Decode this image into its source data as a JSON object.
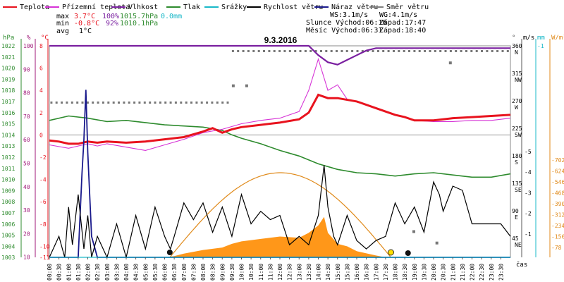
{
  "chart_data": {
    "type": "line",
    "title": "9.3.2016",
    "xlabel": "čas",
    "legend": [
      {
        "label": "Teplota",
        "color": "#e8131e"
      },
      {
        "label": "Přízemní teplota",
        "color": "#d633d6"
      },
      {
        "label": "Vlhkost",
        "color": "#7a1fa0"
      },
      {
        "label": "Tlak",
        "color": "#2e8b2e"
      },
      {
        "label": "Srážky",
        "color": "#19b8c8"
      },
      {
        "label": "Rychlost větru",
        "color": "#000000"
      },
      {
        "label": "Náraz větru",
        "color": "#1a1a8c"
      },
      {
        "label": "Směr větru",
        "color": "#808080"
      }
    ],
    "stats": {
      "max_label": "max",
      "max_temp": "3.7°C",
      "max_hum": "100%",
      "max_press": "1015.7hPa",
      "max_rain": "0.0mm",
      "min_label": "min",
      "min_temp": "-0.8°C",
      "min_hum": "92%",
      "min_press": "1010.1hPa",
      "avg_label": "avg",
      "avg_temp": "1°C",
      "ws": "WS:3.1m/s",
      "wg": "WG:4.1m/s",
      "sun": "Slunce Východ:06:16",
      "sun_set": "Západ:17:47",
      "moon": "Měsíc Východ:06:31",
      "moon_set": "Západ:18:40"
    },
    "axes": {
      "hpa": {
        "title": "hPa",
        "ticks": [
          1022,
          1021,
          1020,
          1019,
          1018,
          1017,
          1016,
          1015,
          1014,
          1013,
          1012,
          1011,
          1010,
          1009,
          1008,
          1007,
          1006,
          1005,
          1004,
          1003
        ]
      },
      "pct": {
        "title": "%",
        "ticks": [
          100,
          90,
          80,
          70,
          60,
          50,
          40,
          30,
          20,
          10
        ]
      },
      "degc": {
        "title": "°C",
        "ticks": [
          8,
          6,
          4,
          2,
          0,
          -2,
          -4,
          -6,
          -8,
          -10,
          -11
        ]
      },
      "dir": {
        "title": "°",
        "ticks": [
          "360 N",
          "315 NW",
          "270 W",
          "225 SW",
          "180 S",
          "135 SE",
          "90 E",
          "45 NE"
        ]
      },
      "ms": {
        "title": "m/s",
        "ticks": [
          5,
          4,
          3,
          2,
          1
        ]
      },
      "mm": {
        "title": "mm",
        "ticks": [
          1
        ]
      },
      "wm2": {
        "title": "W/m²",
        "ticks": [
          702,
          624,
          546,
          468,
          390,
          312,
          234,
          156,
          78
        ]
      }
    },
    "time_ticks": [
      "00:00",
      "00:30",
      "01:00",
      "01:30",
      "02:00",
      "02:30",
      "03:00",
      "03:30",
      "04:00",
      "04:30",
      "05:00",
      "05:30",
      "06:00",
      "06:30",
      "07:00",
      "07:30",
      "08:00",
      "08:30",
      "09:00",
      "09:30",
      "10:00",
      "10:30",
      "11:00",
      "11:30",
      "12:00",
      "12:30",
      "13:00",
      "13:30",
      "14:00",
      "14:30",
      "15:00",
      "15:30",
      "16:00",
      "16:30",
      "17:00",
      "17:30",
      "18:00",
      "18:30",
      "19:00",
      "19:30",
      "20:00",
      "20:30",
      "21:00",
      "21:30",
      "22:00",
      "22:30",
      "23:00",
      "23:30"
    ],
    "series": [
      {
        "name": "Teplota",
        "unit": "°C",
        "x": [
          0,
          0.5,
          1,
          1.5,
          2,
          2.5,
          3,
          4,
          5,
          6,
          7,
          8,
          8.5,
          9,
          9.5,
          10,
          11,
          12,
          13,
          13.5,
          14,
          14.5,
          15,
          16,
          17,
          18,
          18.5,
          19,
          20,
          21,
          22,
          23,
          24
        ],
        "values": [
          -0.5,
          -0.6,
          -0.8,
          -0.8,
          -0.6,
          -0.7,
          -0.6,
          -0.7,
          -0.6,
          -0.4,
          -0.2,
          0.3,
          0.6,
          0.2,
          0.5,
          0.7,
          0.9,
          1.1,
          1.4,
          2.0,
          3.6,
          3.3,
          3.3,
          3.0,
          2.4,
          1.8,
          1.6,
          1.3,
          1.3,
          1.5,
          1.6,
          1.7,
          1.8
        ]
      },
      {
        "name": "Přízemní teplota",
        "unit": "°C",
        "x": [
          0,
          1,
          1.5,
          2,
          2.5,
          3,
          4,
          5,
          6,
          7,
          8,
          9,
          10,
          11,
          12,
          13,
          13.5,
          14,
          14.5,
          15,
          15.5,
          16,
          17,
          18,
          19,
          20,
          21,
          22,
          23,
          24
        ],
        "values": [
          -0.9,
          -1.2,
          -1.0,
          -0.8,
          -1.0,
          -0.8,
          -1.1,
          -1.4,
          -0.9,
          -0.4,
          0.2,
          0.5,
          1.0,
          1.3,
          1.5,
          2.1,
          4.0,
          6.8,
          4.0,
          4.5,
          3.2,
          3.0,
          2.4,
          1.8,
          1.3,
          1.2,
          1.2,
          1.3,
          1.3,
          1.5
        ]
      },
      {
        "name": "Vlhkost",
        "unit": "%",
        "x": [
          0,
          9,
          12,
          13.5,
          14,
          14.5,
          15,
          15.5,
          16,
          16.5,
          17,
          24
        ],
        "values": [
          100,
          100,
          100,
          100,
          96,
          93,
          92,
          94,
          96,
          98,
          99,
          99
        ]
      },
      {
        "name": "Tlak",
        "unit": "hPa",
        "x": [
          0,
          1,
          2,
          3,
          4,
          5,
          6,
          7,
          8,
          9,
          9.5,
          10,
          11,
          12,
          13,
          14,
          15,
          16,
          17,
          18,
          19,
          20,
          21,
          22,
          23,
          24
        ],
        "values": [
          1015.3,
          1015.7,
          1015.5,
          1015.2,
          1015.3,
          1015.1,
          1014.9,
          1014.8,
          1014.7,
          1014.4,
          1014.0,
          1013.7,
          1013.2,
          1012.6,
          1012.1,
          1011.4,
          1010.9,
          1010.6,
          1010.5,
          1010.3,
          1010.5,
          1010.6,
          1010.4,
          1010.2,
          1010.2,
          1010.5
        ]
      },
      {
        "name": "Srážky",
        "unit": "mm",
        "x": [
          0,
          24
        ],
        "values": [
          0,
          0
        ]
      },
      {
        "name": "Rychlost větru",
        "unit": "m/s",
        "x": [
          0,
          0.5,
          0.8,
          1,
          1.2,
          1.5,
          1.8,
          2,
          2.2,
          2.5,
          3,
          3.5,
          4,
          4.5,
          5,
          5.5,
          6,
          6.3,
          6.5,
          7,
          7.5,
          8,
          8.5,
          9,
          9.5,
          10,
          10.5,
          11,
          11.5,
          12,
          12.5,
          13,
          13.5,
          14,
          14.3,
          14.5,
          14.8,
          15,
          15.5,
          16,
          16.5,
          17,
          17.5,
          18,
          18.5,
          19,
          19.5,
          20,
          20.3,
          20.5,
          21,
          21.5,
          22,
          22.5,
          23,
          23.5,
          24
        ],
        "values": [
          0,
          0.5,
          0,
          1.2,
          0.3,
          1.5,
          0.2,
          1.0,
          0,
          0.5,
          0,
          0.8,
          0,
          1.0,
          0.2,
          1.2,
          0.5,
          0.2,
          0.5,
          1.3,
          0.9,
          1.3,
          0.6,
          1.2,
          0.5,
          1.5,
          0.8,
          1.1,
          0.9,
          1.0,
          0.3,
          0.5,
          0.3,
          1.0,
          2.2,
          1.2,
          0.5,
          0.3,
          1.0,
          0.4,
          0.2,
          0.4,
          0.5,
          1.3,
          0.8,
          1.2,
          0.6,
          1.8,
          1.5,
          1.1,
          1.7,
          1.6,
          0.8,
          0.8,
          0.8,
          0.8,
          0.5
        ]
      },
      {
        "name": "Náraz větru",
        "unit": "m/s",
        "x": [
          0,
          1.5,
          1.7,
          1.8,
          1.9,
          2.0,
          2.2,
          2.5,
          24
        ],
        "values": [
          0,
          0,
          2.0,
          2.8,
          4.0,
          2.5,
          0.5,
          0,
          0
        ]
      },
      {
        "name": "Směr větru",
        "unit": "°",
        "x": [
          0,
          0.5,
          1,
          2,
          3,
          4,
          5,
          6,
          7,
          8,
          9,
          9.5,
          10,
          11,
          12,
          13,
          14,
          15,
          16,
          17,
          18,
          19,
          20,
          21,
          22,
          23,
          24
        ],
        "values": [
          270,
          270,
          270,
          270,
          270,
          270,
          270,
          270,
          270,
          270,
          270,
          360,
          360,
          360,
          360,
          360,
          360,
          360,
          360,
          360,
          360,
          360,
          360,
          360,
          360,
          360,
          360
        ]
      },
      {
        "name": "Sluneční svit",
        "unit": "W/m²",
        "x": [
          6,
          6.5,
          7,
          8,
          9,
          9.5,
          10,
          11,
          12,
          13,
          13.5,
          14,
          14.3,
          14.5,
          15,
          15.5,
          16,
          17,
          17.5
        ],
        "values": [
          0,
          10,
          30,
          60,
          80,
          110,
          130,
          150,
          170,
          160,
          200,
          260,
          330,
          200,
          110,
          90,
          50,
          15,
          0
        ]
      }
    ],
    "ylim_temp": [
      -11,
      8
    ],
    "grid": false
  }
}
